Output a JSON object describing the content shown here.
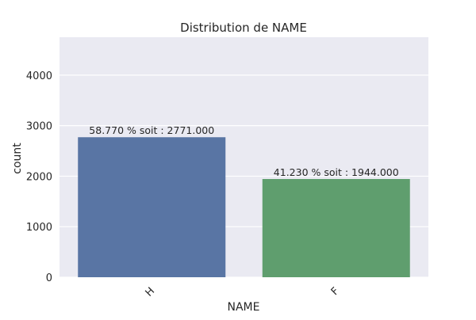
{
  "chart_data": {
    "type": "bar",
    "title": "Distribution de NAME",
    "xlabel": "NAME",
    "ylabel": "count",
    "categories": [
      "H",
      "F"
    ],
    "values": [
      2771,
      1944
    ],
    "bar_labels": [
      "58.770 % soit : 2771.000",
      "41.230 % soit : 1944.000"
    ],
    "colors": [
      "#5975a4",
      "#5f9e6e"
    ],
    "ylim": [
      0,
      4750
    ],
    "yticks": [
      0,
      1000,
      2000,
      3000,
      4000
    ],
    "grid": true,
    "background": "#eaeaf2"
  }
}
